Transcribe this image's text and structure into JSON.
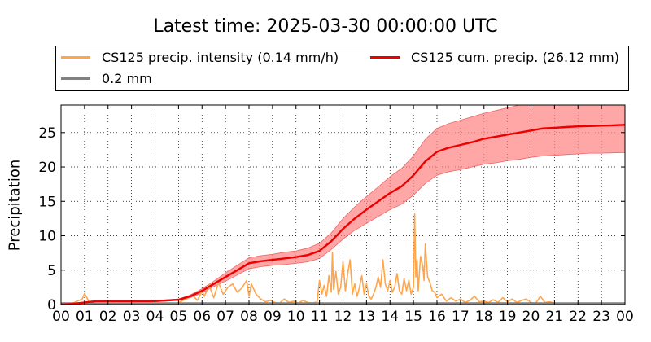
{
  "chart_data": {
    "type": "line",
    "title": "Latest time: 2025-03-30 00:00:00 UTC",
    "xlabel": "",
    "ylabel": "Precipitation",
    "ylim": [
      0,
      29
    ],
    "yticks": [
      0,
      5,
      10,
      15,
      20,
      25
    ],
    "xlim": [
      0,
      24
    ],
    "xticks": [
      "00",
      "01",
      "02",
      "03",
      "04",
      "05",
      "06",
      "07",
      "08",
      "09",
      "10",
      "11",
      "12",
      "13",
      "14",
      "15",
      "16",
      "17",
      "18",
      "19",
      "20",
      "21",
      "22",
      "23",
      "00"
    ],
    "grid": true,
    "legend_position": "top",
    "legend": [
      {
        "label": "CS125 precip. intensity (0.14 mm/h)",
        "color": "#ffa64d"
      },
      {
        "label": "CS125 cum. precip. (26.12 mm)",
        "color": "#ee0000"
      },
      {
        "label": "0.2 mm",
        "color": "#808080"
      }
    ],
    "series": [
      {
        "name": "CS125 precip. intensity (0.14 mm/h)",
        "color": "#ffa64d",
        "x": [
          0,
          0.5,
          0.9,
          1.0,
          1.1,
          1.2,
          1.4,
          2,
          3,
          4,
          4.8,
          5.0,
          5.2,
          5.4,
          5.6,
          5.8,
          6.0,
          6.1,
          6.3,
          6.5,
          6.7,
          6.9,
          7.1,
          7.3,
          7.5,
          7.7,
          7.9,
          8.0,
          8.1,
          8.3,
          8.5,
          8.7,
          8.9,
          9.1,
          9.3,
          9.5,
          9.7,
          9.9,
          10.1,
          10.3,
          10.5,
          10.7,
          10.9,
          11.0,
          11.1,
          11.2,
          11.3,
          11.4,
          11.5,
          11.55,
          11.6,
          11.7,
          11.8,
          11.9,
          12.0,
          12.1,
          12.2,
          12.3,
          12.4,
          12.5,
          12.6,
          12.7,
          12.8,
          12.9,
          13.0,
          13.1,
          13.2,
          13.3,
          13.4,
          13.5,
          13.6,
          13.7,
          13.8,
          13.9,
          14.0,
          14.1,
          14.2,
          14.3,
          14.4,
          14.5,
          14.6,
          14.7,
          14.8,
          14.9,
          15.0,
          15.05,
          15.1,
          15.15,
          15.2,
          15.3,
          15.4,
          15.45,
          15.5,
          15.6,
          15.7,
          15.8,
          15.9,
          16.0,
          16.2,
          16.4,
          16.6,
          16.8,
          17.0,
          17.2,
          17.4,
          17.6,
          17.8,
          18.0,
          18.2,
          18.4,
          18.6,
          18.8,
          19.0,
          19.2,
          19.4,
          19.6,
          19.8,
          20.0,
          20.2,
          20.4,
          20.6,
          20.8,
          21.0,
          21.5,
          22,
          22.5,
          23,
          23.5,
          24
        ],
        "values": [
          0.1,
          0.2,
          0.8,
          1.6,
          1.0,
          0.3,
          0.1,
          0.1,
          0.1,
          0.1,
          0.1,
          0.3,
          0.6,
          0.9,
          1.4,
          0.6,
          2.0,
          1.2,
          2.8,
          1.0,
          3.2,
          1.5,
          2.5,
          3.0,
          1.8,
          2.4,
          3.5,
          1.2,
          3.0,
          1.5,
          0.8,
          0.4,
          0.6,
          0.3,
          0.2,
          0.8,
          0.3,
          0.5,
          0.2,
          0.6,
          0.3,
          0.2,
          0.4,
          3.5,
          1.5,
          2.8,
          1.2,
          4.2,
          1.8,
          7.5,
          2.2,
          4.8,
          1.5,
          2.5,
          6.2,
          2.0,
          4.5,
          6.5,
          1.5,
          3.0,
          1.2,
          2.5,
          4.2,
          1.5,
          3.0,
          1.2,
          0.8,
          1.5,
          2.5,
          4.0,
          2.5,
          6.5,
          3.0,
          2.0,
          3.5,
          1.8,
          2.5,
          4.5,
          2.0,
          1.5,
          3.8,
          2.0,
          3.5,
          1.5,
          2.5,
          13.2,
          4.0,
          6.5,
          2.0,
          7.0,
          5.5,
          3.5,
          8.8,
          4.0,
          3.2,
          2.0,
          1.8,
          1.0,
          1.5,
          0.5,
          1.0,
          0.5,
          0.8,
          0.3,
          0.6,
          1.2,
          0.4,
          0.5,
          0.3,
          0.7,
          0.3,
          1.0,
          0.4,
          0.8,
          0.3,
          0.6,
          0.8,
          0.3,
          0.2,
          1.2,
          0.3,
          0.4,
          0.2,
          0.2,
          0.2,
          0.1,
          0.1,
          0.2,
          0.1
        ]
      },
      {
        "name": "CS125 cum. precip. (26.12 mm)",
        "color": "#ee0000",
        "x": [
          0,
          0.5,
          1.0,
          1.5,
          2,
          3,
          4,
          4.5,
          5,
          5.5,
          6,
          6.5,
          7,
          7.5,
          8,
          8.5,
          9,
          9.5,
          10,
          10.5,
          11,
          11.5,
          12,
          12.5,
          13,
          13.5,
          14,
          14.5,
          15,
          15.5,
          16,
          16.5,
          17,
          17.5,
          18,
          18.5,
          19,
          19.5,
          20,
          20.5,
          21,
          21.5,
          22,
          22.5,
          23,
          23.5,
          24
        ],
        "values": [
          0,
          0.1,
          0.3,
          0.5,
          0.5,
          0.5,
          0.5,
          0.6,
          0.7,
          1.2,
          2.0,
          3.0,
          4.0,
          5.0,
          6.0,
          6.3,
          6.5,
          6.7,
          6.9,
          7.2,
          7.8,
          9.2,
          11.0,
          12.5,
          13.8,
          15.0,
          16.2,
          17.2,
          18.8,
          20.8,
          22.2,
          22.8,
          23.2,
          23.6,
          24.1,
          24.4,
          24.7,
          25.0,
          25.3,
          25.6,
          25.7,
          25.8,
          25.9,
          25.95,
          26.0,
          26.05,
          26.12
        ]
      },
      {
        "name": "0.2 mm",
        "color": "#808080",
        "x": [
          0,
          24
        ],
        "values": [
          0.2,
          0.2
        ]
      }
    ],
    "uncertainty_band": {
      "series": "CS125 cum. precip. (26.12 mm)",
      "color": "#ff8080",
      "x": [
        0,
        0.5,
        1.0,
        1.5,
        2,
        3,
        4,
        4.5,
        5,
        5.5,
        6,
        6.5,
        7,
        7.5,
        8,
        8.5,
        9,
        9.5,
        10,
        10.5,
        11,
        11.5,
        12,
        12.5,
        13,
        13.5,
        14,
        14.5,
        15,
        15.5,
        16,
        16.5,
        17,
        17.5,
        18,
        18.5,
        19,
        19.5,
        20,
        20.5,
        21,
        21.5,
        22,
        22.5,
        23,
        23.5,
        24
      ],
      "lower": [
        0,
        0.1,
        0.25,
        0.45,
        0.45,
        0.45,
        0.45,
        0.5,
        0.6,
        1.0,
        1.7,
        2.6,
        3.4,
        4.3,
        5.2,
        5.5,
        5.7,
        5.8,
        6.0,
        6.2,
        6.7,
        8.0,
        9.5,
        10.8,
        11.8,
        12.8,
        13.8,
        14.6,
        15.9,
        17.6,
        18.8,
        19.3,
        19.6,
        20.0,
        20.4,
        20.6,
        20.9,
        21.1,
        21.4,
        21.6,
        21.7,
        21.8,
        21.9,
        22.0,
        22.0,
        22.05,
        22.1
      ],
      "upper": [
        0,
        0.1,
        0.35,
        0.55,
        0.55,
        0.55,
        0.55,
        0.7,
        0.8,
        1.4,
        2.3,
        3.4,
        4.6,
        5.7,
        6.8,
        7.1,
        7.3,
        7.6,
        7.8,
        8.2,
        8.9,
        10.4,
        12.5,
        14.2,
        15.7,
        17.1,
        18.6,
        19.8,
        21.6,
        24.0,
        25.6,
        26.3,
        26.8,
        27.3,
        27.8,
        28.2,
        28.6,
        29,
        29,
        29,
        29,
        29,
        29,
        29,
        29,
        29,
        29
      ]
    }
  }
}
